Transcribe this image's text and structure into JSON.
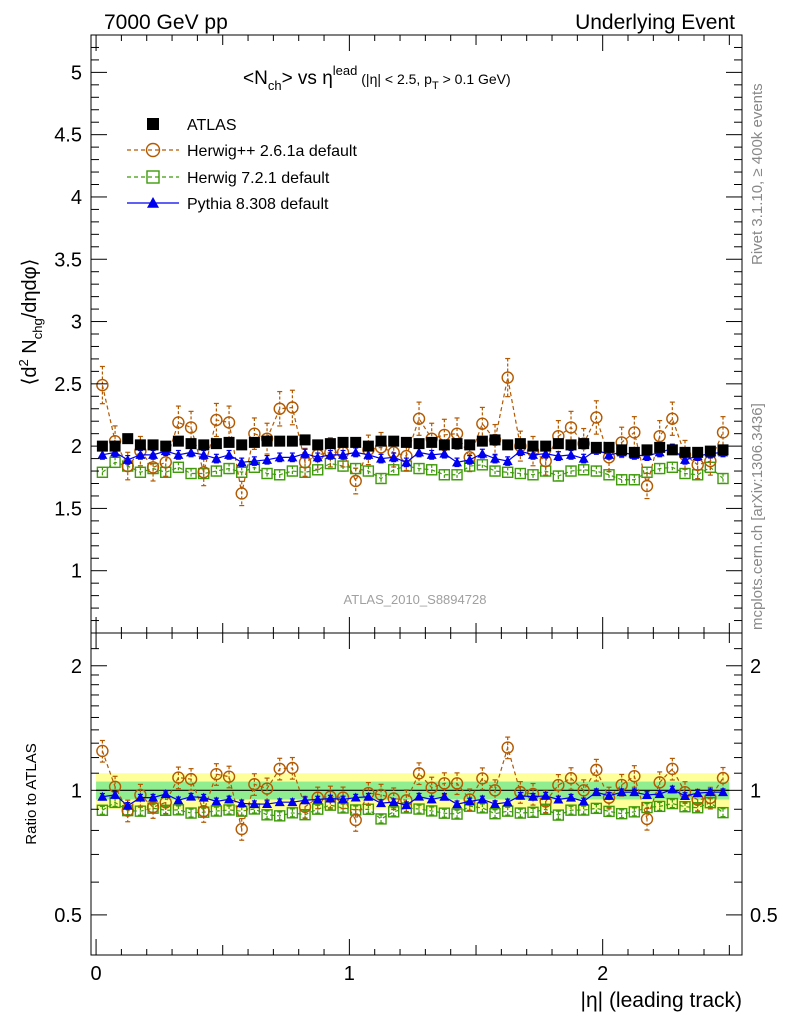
{
  "header": {
    "left": "7000 GeV pp",
    "right": "Underlying Event"
  },
  "plot_title": {
    "main_lt": "<N",
    "main_sub": "ch",
    "main_gt": "> vs η",
    "main_sup": "lead",
    "cond_a": " (|η| < 2.5, p",
    "cond_sub": "T",
    "cond_b": " > 0.1 GeV)"
  },
  "ylabel_top": {
    "a": "⟨d",
    "sup": "2",
    "b": " N",
    "sub": "chg",
    "c": "/dηdφ⟩"
  },
  "ylabel_bottom": "Ratio to ATLAS",
  "xlabel": "|η| (leading track)",
  "watermark": "ATLAS_2010_S8894728",
  "side_top": "Rivet 3.1.10, ≥ 400k events",
  "side_bottom": "mcplots.cern.ch [arXiv:1306.3436]",
  "colors": {
    "atlas": "#000000",
    "herwigpp": "#b35900",
    "herwig7": "#3f9b0b",
    "pythia": "#0000ee",
    "band_yellow": "#ffff99",
    "band_green": "#90ee90"
  },
  "chart_data": {
    "type": "scatter",
    "x": [
      0.025,
      0.075,
      0.125,
      0.175,
      0.225,
      0.275,
      0.325,
      0.375,
      0.425,
      0.475,
      0.525,
      0.575,
      0.625,
      0.675,
      0.725,
      0.775,
      0.825,
      0.875,
      0.925,
      0.975,
      1.025,
      1.075,
      1.125,
      1.175,
      1.225,
      1.275,
      1.325,
      1.375,
      1.425,
      1.475,
      1.525,
      1.575,
      1.625,
      1.675,
      1.725,
      1.775,
      1.825,
      1.875,
      1.925,
      1.975,
      2.025,
      2.075,
      2.125,
      2.175,
      2.225,
      2.275,
      2.325,
      2.375,
      2.425,
      2.475
    ],
    "xlabel": "|η| (leading track)",
    "xlim": [
      -0.02,
      2.55
    ],
    "xticks": [
      "0",
      "1",
      "2"
    ],
    "main_panel": {
      "ylim": [
        0.5,
        5.3
      ],
      "yticks": [
        "1",
        "1.5",
        "2",
        "2.5",
        "3",
        "3.5",
        "4",
        "4.5",
        "5"
      ]
    },
    "ratio_panel": {
      "ylabel": "Ratio to ATLAS",
      "scale": "log",
      "ylim": [
        0.4,
        2.4
      ],
      "yticks": [
        "0.5",
        "1",
        "2"
      ],
      "band_inner": 0.05,
      "band_outer": 0.1
    },
    "series": [
      {
        "name": "ATLAS",
        "marker": "filled-square",
        "values": [
          2.0,
          2.0,
          2.06,
          2.01,
          2.01,
          2.0,
          2.04,
          2.02,
          2.01,
          2.02,
          2.03,
          2.01,
          2.03,
          2.04,
          2.04,
          2.04,
          2.05,
          2.01,
          2.02,
          2.03,
          2.03,
          2.0,
          2.04,
          2.04,
          2.03,
          2.02,
          2.03,
          2.01,
          2.02,
          2.01,
          2.04,
          2.05,
          2.01,
          2.02,
          2.0,
          2.0,
          2.02,
          2.01,
          2.02,
          1.99,
          1.99,
          1.97,
          1.95,
          1.97,
          1.99,
          1.97,
          1.95,
          1.95,
          1.96,
          1.97
        ]
      },
      {
        "name": "Herwig++ 2.6.1a default",
        "marker": "open-circle",
        "values": [
          2.49,
          2.04,
          1.84,
          1.96,
          1.83,
          1.87,
          2.19,
          2.15,
          1.79,
          2.21,
          2.19,
          1.62,
          2.1,
          2.06,
          2.3,
          2.31,
          1.87,
          1.93,
          1.95,
          1.95,
          1.72,
          1.97,
          1.99,
          1.95,
          1.92,
          2.22,
          2.06,
          2.09,
          2.1,
          1.91,
          2.18,
          2.05,
          2.55,
          2.0,
          1.96,
          1.88,
          2.08,
          2.15,
          2.02,
          2.23,
          1.91,
          2.03,
          2.11,
          1.68,
          2.08,
          2.22,
          1.93,
          1.85,
          1.88,
          2.11
        ]
      },
      {
        "name": "Herwig 7.2.1 default",
        "marker": "open-square",
        "values": [
          1.79,
          1.87,
          1.84,
          1.79,
          1.82,
          1.79,
          1.83,
          1.78,
          1.78,
          1.8,
          1.82,
          1.79,
          1.83,
          1.78,
          1.77,
          1.8,
          1.79,
          1.81,
          1.86,
          1.84,
          1.82,
          1.8,
          1.74,
          1.81,
          1.84,
          1.82,
          1.81,
          1.77,
          1.77,
          1.84,
          1.85,
          1.8,
          1.79,
          1.78,
          1.77,
          1.8,
          1.76,
          1.8,
          1.81,
          1.8,
          1.77,
          1.73,
          1.73,
          1.79,
          1.82,
          1.83,
          1.78,
          1.77,
          1.83,
          1.74
        ]
      },
      {
        "name": "Pythia 8.308 default",
        "marker": "filled-triangle",
        "values": [
          1.93,
          1.95,
          1.89,
          1.93,
          1.93,
          1.96,
          1.93,
          1.95,
          1.93,
          1.9,
          1.93,
          1.87,
          1.88,
          1.89,
          1.91,
          1.91,
          1.94,
          1.91,
          1.93,
          1.93,
          1.95,
          1.93,
          1.9,
          1.91,
          1.87,
          1.95,
          1.93,
          1.94,
          1.87,
          1.89,
          1.94,
          1.9,
          1.88,
          1.96,
          1.93,
          1.94,
          1.92,
          1.93,
          1.9,
          1.97,
          1.93,
          1.95,
          1.93,
          1.92,
          1.95,
          1.98,
          1.89,
          1.92,
          1.94,
          1.95
        ]
      }
    ]
  }
}
